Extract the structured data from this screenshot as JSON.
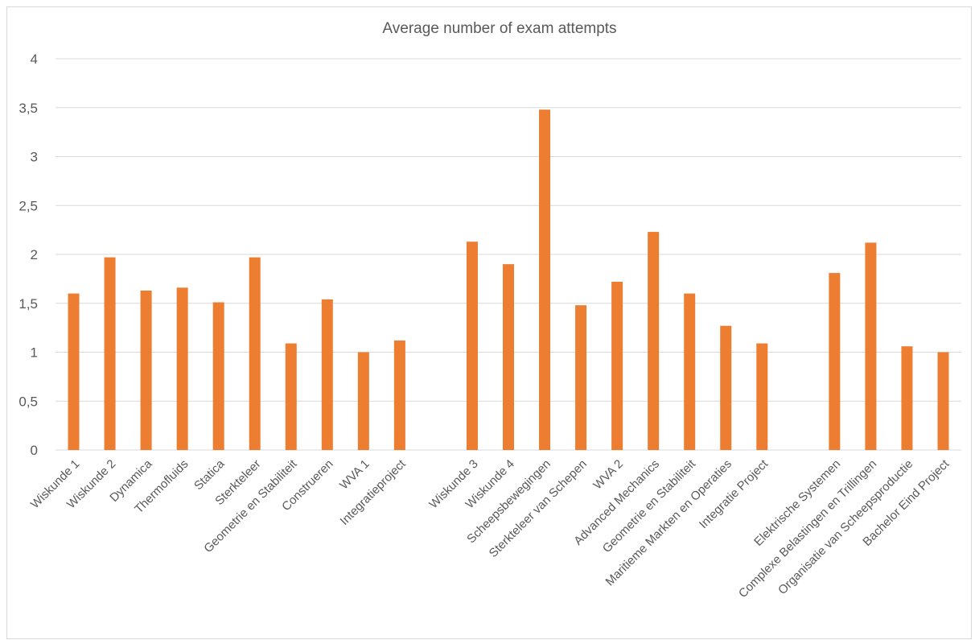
{
  "chart_data": {
    "type": "bar",
    "title": "Average number of exam attempts",
    "xlabel": "",
    "ylabel": "",
    "ylim": [
      0,
      4
    ],
    "yticks": [
      "0",
      "0,5",
      "1",
      "1,5",
      "2",
      "2,5",
      "3",
      "3,5",
      "4"
    ],
    "grid": true,
    "legend": "none",
    "bar_color": "#ed7d31",
    "grid_color": "#d9d9d9",
    "categories": [
      "Wiskunde 1",
      "Wiskunde 2",
      "Dynamica",
      "Thermofluids",
      "Statica",
      "Sterkteleer",
      "Geometrie en Stabiliteit",
      "Construeren",
      "WVA 1",
      "Integratieproject",
      "",
      "Wiskunde 3",
      "Wiskunde 4",
      "Scheepsbewegingen",
      "Sterkteleer van Schepen",
      "WVA 2",
      "Advanced Mechanics",
      "Geometrie en Stabiliteit",
      "Maritieme Markten en Operaties",
      "Integratie Project",
      "",
      "Elektrische Systemen",
      "Complexe Belastingen en Trillingen",
      "Organisatie van Scheepsproductie",
      "Bachelor Eind Project"
    ],
    "values": [
      1.6,
      1.97,
      1.63,
      1.66,
      1.51,
      1.97,
      1.09,
      1.54,
      1.0,
      1.12,
      null,
      2.13,
      1.9,
      3.48,
      1.48,
      1.72,
      2.23,
      1.6,
      1.27,
      1.09,
      null,
      1.81,
      2.12,
      1.06,
      1.0
    ]
  }
}
